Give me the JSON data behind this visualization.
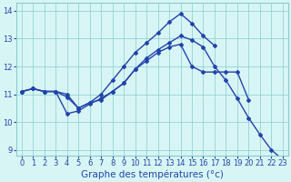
{
  "title": "Graphe des températures (°c)",
  "x_values": [
    0,
    1,
    2,
    3,
    4,
    5,
    6,
    7,
    8,
    9,
    10,
    11,
    12,
    13,
    14,
    15,
    16,
    17,
    18,
    19,
    20,
    21,
    22,
    23
  ],
  "x_labels": [
    "0",
    "1",
    "2",
    "3",
    "4",
    "5",
    "6",
    "7",
    "8",
    "9",
    "10",
    "11",
    "12",
    "13",
    "14",
    "15",
    "16",
    "17",
    "18",
    "19",
    "20",
    "21",
    "22",
    "23"
  ],
  "line1": [
    11.1,
    11.2,
    11.1,
    11.1,
    10.9,
    10.5,
    10.7,
    10.8,
    11.1,
    11.4,
    11.9,
    12.2,
    12.5,
    12.7,
    12.8,
    12.0,
    11.8,
    11.8,
    11.8,
    11.8,
    10.8,
    null,
    null,
    null
  ],
  "line2": [
    11.1,
    11.2,
    11.1,
    11.1,
    11.0,
    10.5,
    10.7,
    11.0,
    11.5,
    12.0,
    12.5,
    12.85,
    13.2,
    13.6,
    13.9,
    13.55,
    13.1,
    12.75,
    null,
    null,
    null,
    null,
    null,
    null
  ],
  "line3": [
    11.1,
    11.2,
    11.1,
    11.1,
    10.3,
    10.4,
    10.65,
    10.85,
    11.1,
    11.4,
    11.9,
    12.3,
    12.6,
    12.85,
    13.1,
    12.95,
    12.7,
    12.0,
    11.5,
    10.85,
    10.15,
    9.55,
    9.0,
    8.65
  ],
  "line_color": "#2244aa",
  "bg_color": "#d8f5f5",
  "grid_color": "#88cccc",
  "text_color": "#2244aa",
  "ylim": [
    8.8,
    14.3
  ],
  "yticks": [
    9,
    10,
    11,
    12,
    13,
    14
  ],
  "marker": "D",
  "marker_size": 2.0,
  "linewidth": 1.0,
  "tick_fontsize": 6.0,
  "title_fontsize": 7.5
}
